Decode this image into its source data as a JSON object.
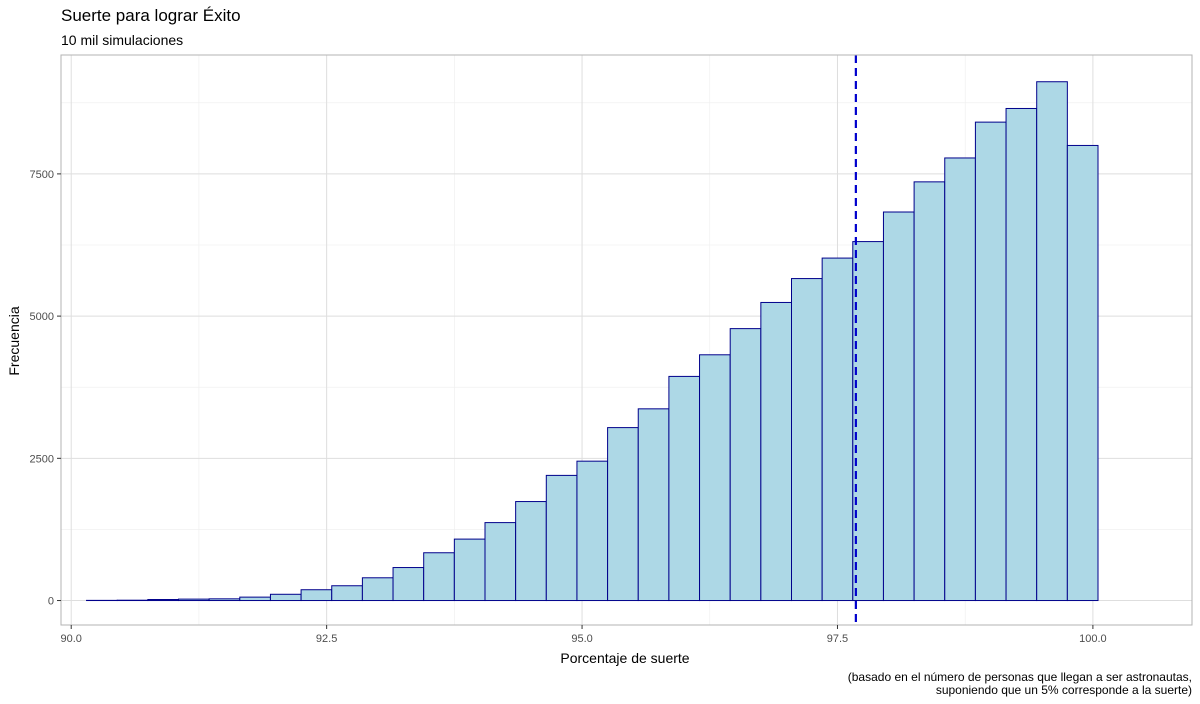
{
  "chart_data": {
    "type": "bar",
    "subtype": "histogram",
    "title": "Suerte para lograr Éxito",
    "subtitle": "10 mil simulaciones",
    "xlabel": "Porcentaje de suerte",
    "ylabel": "Frecuencia",
    "caption_lines": [
      "(basado en el número de personas que llegan a ser astronautas,",
      "suponiendo que un 5% corresponde a la suerte)"
    ],
    "xlim": [
      89.9,
      100.97
    ],
    "ylim": [
      -430,
      9590
    ],
    "x_ticks": [
      90.0,
      92.5,
      95.0,
      97.5,
      100.0
    ],
    "x_tick_labels": [
      "90.0",
      "92.5",
      "95.0",
      "97.5",
      "100.0"
    ],
    "y_ticks": [
      0,
      2500,
      5000,
      7500
    ],
    "y_tick_labels": [
      "0",
      "2500",
      "5000",
      "7500"
    ],
    "grid": true,
    "legend": "none",
    "bins": {
      "x_start": [
        90.15,
        90.45,
        90.75,
        91.05,
        91.35,
        91.65,
        91.95,
        92.25,
        92.55,
        92.85,
        93.15,
        93.45,
        93.75,
        94.05,
        94.35,
        94.65,
        94.95,
        95.25,
        95.55,
        95.85,
        96.15,
        96.45,
        96.75,
        97.05,
        97.35,
        97.65,
        97.95,
        98.25,
        98.55,
        98.85,
        99.15,
        99.45,
        99.75
      ],
      "x_end": [
        90.45,
        90.75,
        91.05,
        91.35,
        91.65,
        91.95,
        92.25,
        92.55,
        92.85,
        93.15,
        93.45,
        93.75,
        94.05,
        94.35,
        94.65,
        94.95,
        95.25,
        95.55,
        95.85,
        96.15,
        96.45,
        96.75,
        97.05,
        97.35,
        97.65,
        97.95,
        98.25,
        98.55,
        98.85,
        99.15,
        99.45,
        99.75,
        100.05
      ],
      "values": [
        3,
        6,
        18,
        25,
        30,
        60,
        110,
        190,
        260,
        400,
        580,
        840,
        1080,
        1370,
        1740,
        2200,
        2450,
        3040,
        3370,
        3940,
        4320,
        4780,
        5240,
        5660,
        6020,
        6310,
        6830,
        7360,
        7780,
        8410,
        8650,
        9120,
        8000
      ]
    },
    "reference_line": {
      "x": 97.68,
      "style": "dashed",
      "color": "#0000CD"
    },
    "colors": {
      "bar_fill": "#ADD8E6",
      "bar_stroke": "#00008B",
      "panel_border": "#B3B3B3",
      "grid_major": "#DEDEDE",
      "grid_minor": "#EEEEEE"
    }
  }
}
